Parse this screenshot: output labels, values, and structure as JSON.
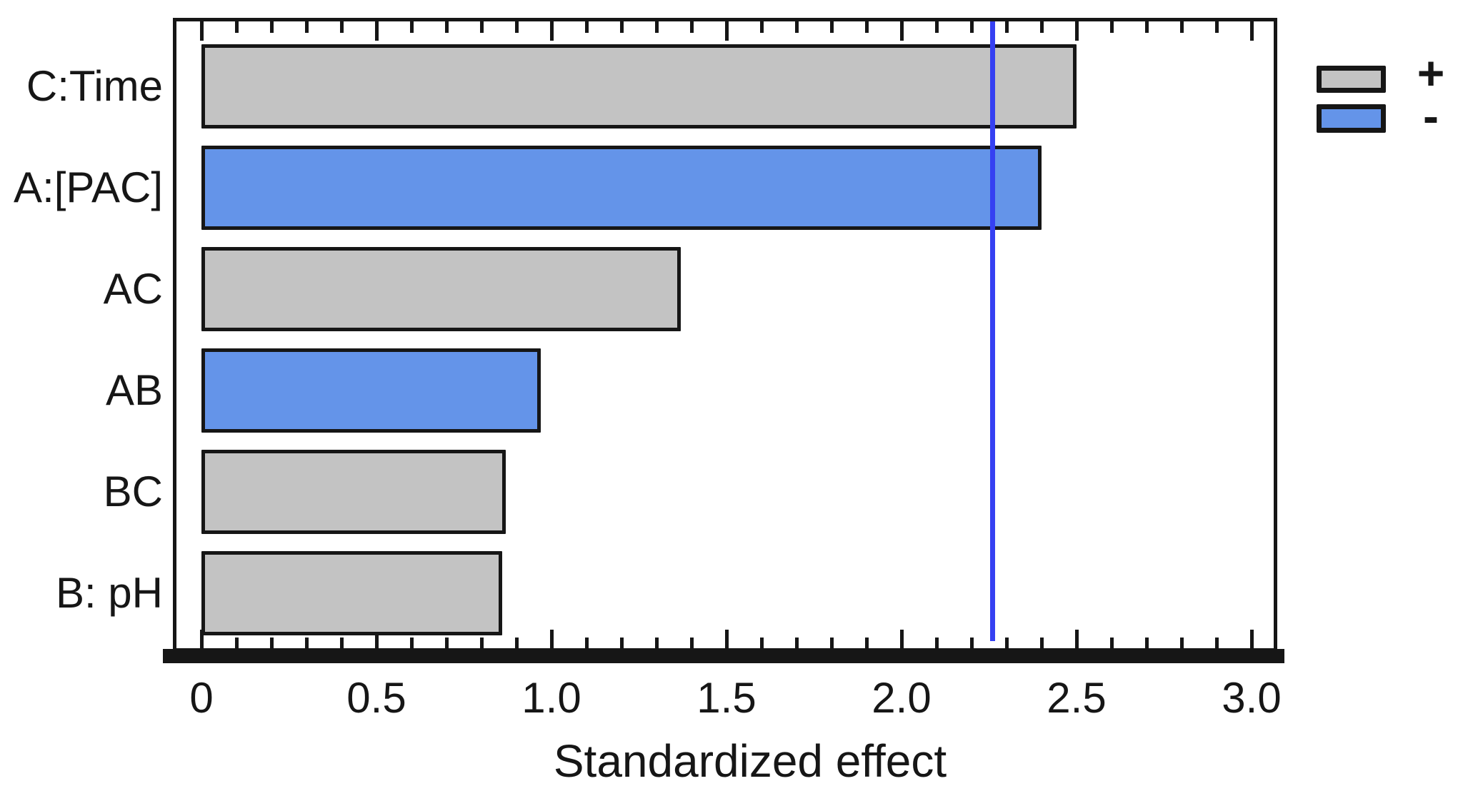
{
  "chart_data": {
    "type": "bar",
    "orientation": "horizontal",
    "title": "",
    "xlabel": "Standardized effect",
    "ylabel": "",
    "categories": [
      "C:Time",
      "A:[PAC]",
      "AC",
      "AB",
      "BC",
      "B: pH"
    ],
    "series": [
      {
        "name": "Standardized effect",
        "values": [
          2.5,
          2.4,
          1.37,
          0.97,
          0.87,
          0.86
        ]
      }
    ],
    "bar_signs": [
      "+",
      "-",
      "+",
      "-",
      "+",
      "+"
    ],
    "xlim": [
      0,
      3.07
    ],
    "xtick_labels": [
      "0",
      "0.5",
      "1.0",
      "1.5",
      "2.0",
      "2.5",
      "3.0"
    ],
    "xtick_values": [
      0,
      0.5,
      1.0,
      1.5,
      2.0,
      2.5,
      3.0
    ],
    "minor_tick_step": 0.1,
    "major_tick_step": 0.5,
    "grid": false,
    "reference_line_x": 2.26,
    "legend": {
      "position": "top-right",
      "entries": [
        {
          "label": "+",
          "color": "#c3c3c3",
          "meaning": "positive effect"
        },
        {
          "label": "-",
          "color": "#6494e9",
          "meaning": "negative effect"
        }
      ]
    },
    "colors": {
      "positive_bar": "#c3c3c3",
      "negative_bar": "#6494e9",
      "bar_border": "#161616",
      "reference_line": "#3540f2",
      "axis": "#161616",
      "text": "#161616"
    }
  }
}
